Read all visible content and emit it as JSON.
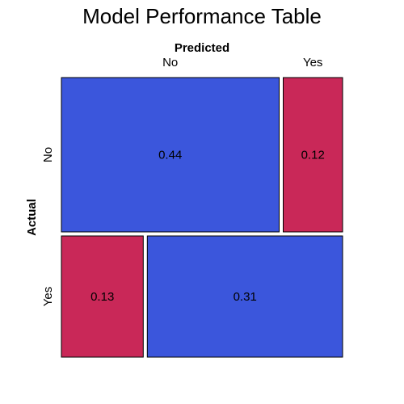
{
  "chart_data": {
    "type": "mosaic",
    "title": "Model Performance Table",
    "xlabel": "Predicted",
    "ylabel": "Actual",
    "predicted_levels": [
      "No",
      "Yes"
    ],
    "actual_levels": [
      "No",
      "Yes"
    ],
    "cells": [
      {
        "actual": "No",
        "predicted": "No",
        "value": 0.44,
        "label": "0.44",
        "kind": "correct"
      },
      {
        "actual": "No",
        "predicted": "Yes",
        "value": 0.12,
        "label": "0.12",
        "kind": "error"
      },
      {
        "actual": "Yes",
        "predicted": "No",
        "value": 0.13,
        "label": "0.13",
        "kind": "error"
      },
      {
        "actual": "Yes",
        "predicted": "Yes",
        "value": 0.31,
        "label": "0.31",
        "kind": "correct"
      }
    ],
    "colors": {
      "correct": "#3B56DC",
      "error": "#C92858"
    }
  }
}
